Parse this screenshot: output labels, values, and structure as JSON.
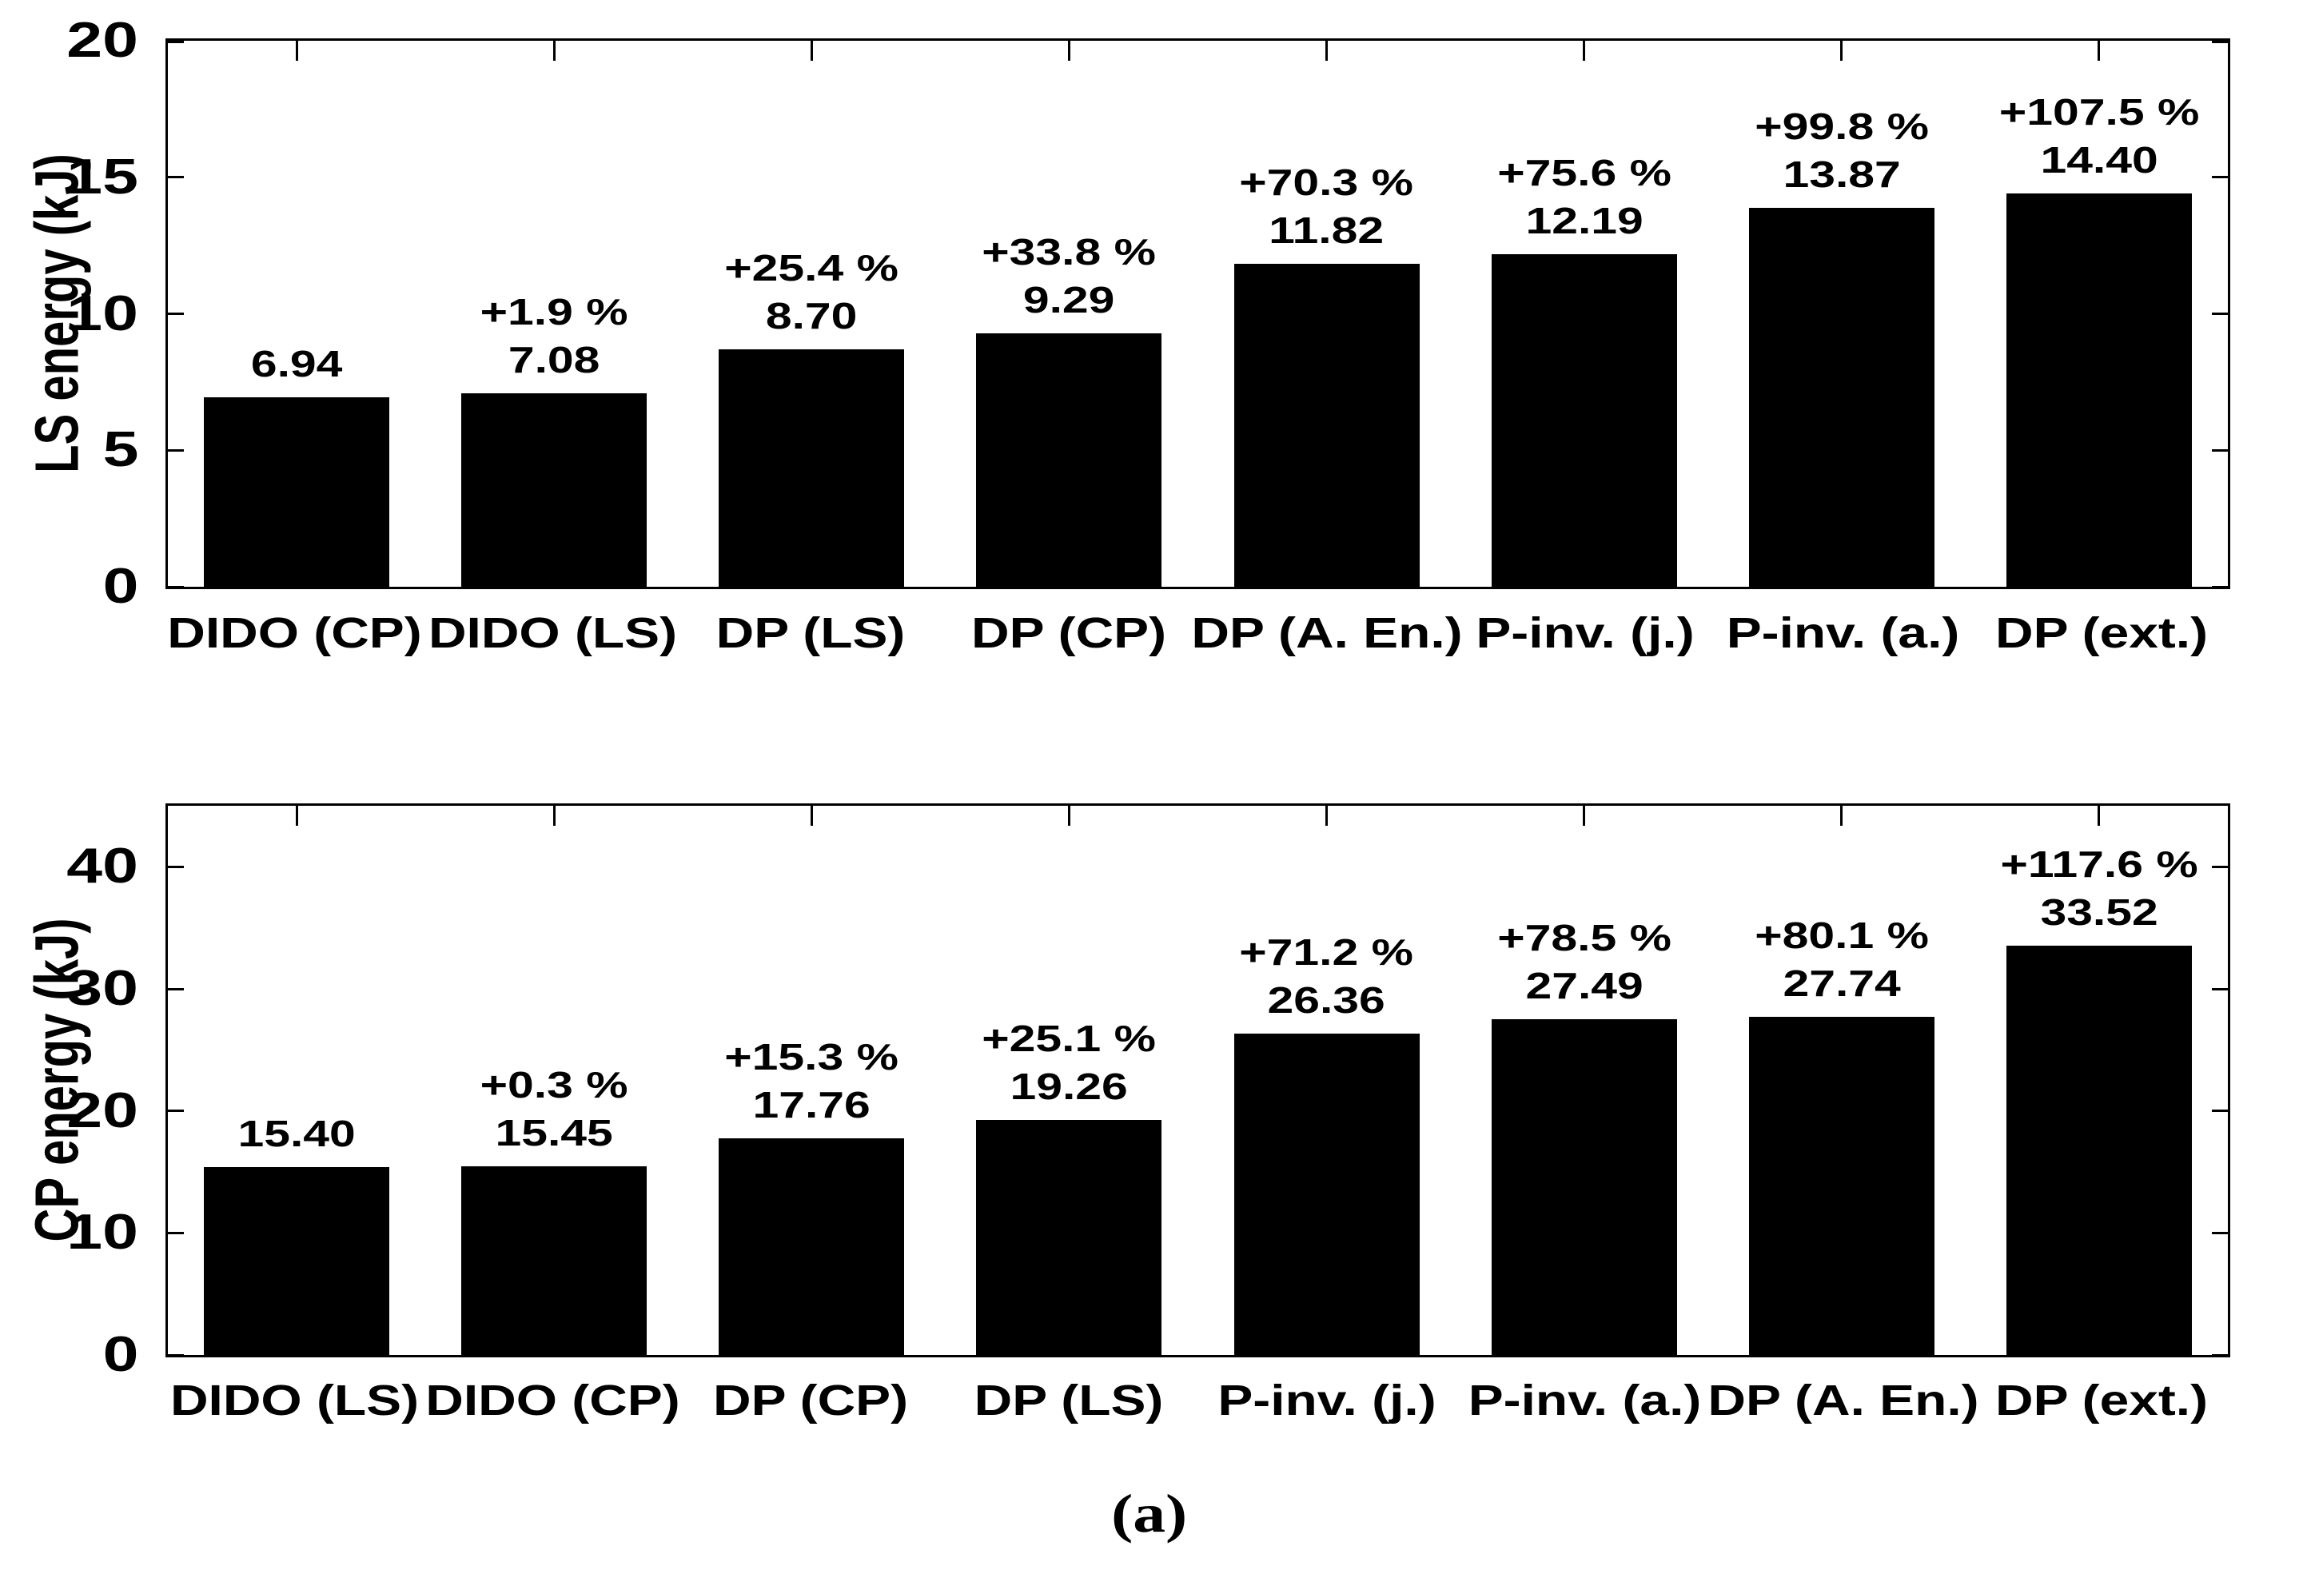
{
  "caption": "(a)",
  "chart_data": [
    {
      "type": "bar",
      "title": "",
      "xlabel": "",
      "ylabel": "LS energy (kJ)",
      "ylim": [
        0,
        20
      ],
      "yticks": [
        0,
        5,
        10,
        15,
        20
      ],
      "grid": false,
      "legend": null,
      "bar_color": "#000000",
      "categories": [
        "DIDO (CP)",
        "DIDO (LS)",
        "DP (LS)",
        "DP (CP)",
        "DP (A. En.)",
        "P-inv. (j.)",
        "P-inv. (a.)",
        "DP (ext.)"
      ],
      "values": [
        6.94,
        7.08,
        8.7,
        9.29,
        11.82,
        12.19,
        13.87,
        14.4
      ],
      "value_labels": [
        "6.94",
        "7.08",
        "8.70",
        "9.29",
        "11.82",
        "12.19",
        "13.87",
        "14.40"
      ],
      "pct_labels": [
        "",
        "+1.9 %",
        "+25.4 %",
        "+33.8 %",
        "+70.3 %",
        "+75.6 %",
        "+99.8 %",
        "+107.5 %"
      ]
    },
    {
      "type": "bar",
      "title": "",
      "xlabel": "",
      "ylabel": "CP energy (kJ)",
      "ylim": [
        0,
        45
      ],
      "yticks": [
        0,
        10,
        20,
        30,
        40
      ],
      "grid": false,
      "legend": null,
      "bar_color": "#000000",
      "categories": [
        "DIDO (LS)",
        "DIDO (CP)",
        "DP (CP)",
        "DP (LS)",
        "P-inv. (j.)",
        "P-inv. (a.)",
        "DP (A. En.)",
        "DP (ext.)"
      ],
      "values": [
        15.4,
        15.45,
        17.76,
        19.26,
        26.36,
        27.49,
        27.74,
        33.52
      ],
      "value_labels": [
        "15.40",
        "15.45",
        "17.76",
        "19.26",
        "26.36",
        "27.49",
        "27.74",
        "33.52"
      ],
      "pct_labels": [
        "",
        "+0.3 %",
        "+15.3 %",
        "+25.1 %",
        "+71.2 %",
        "+78.5 %",
        "+80.1 %",
        "+117.6 %"
      ]
    }
  ]
}
